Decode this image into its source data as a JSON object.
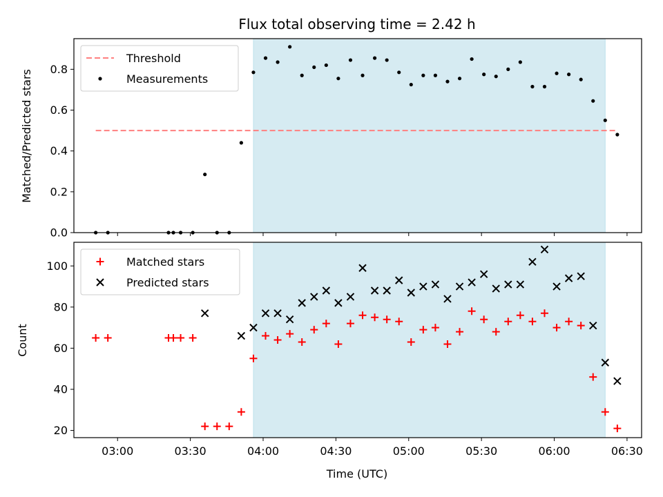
{
  "chart_data": [
    {
      "type": "scatter",
      "title": "Flux total observing time = 2.42 h",
      "xlabel": "",
      "ylabel": "Matched/Predicted stars",
      "xlim": [
        "02:42",
        "06:36"
      ],
      "ylim": [
        0,
        0.95
      ],
      "yticks": [
        0.0,
        0.2,
        0.4,
        0.6,
        0.8
      ],
      "ytick_labels": [
        "0.0",
        "0.2",
        "0.4",
        "0.6",
        "0.8"
      ],
      "highlight_span": {
        "start": "03:56",
        "end": "06:21",
        "color": "#add8e6"
      },
      "legend_position": "top-left",
      "legend": [
        "Threshold",
        "Measurements"
      ],
      "series": [
        {
          "name": "Threshold",
          "kind": "line",
          "style": "dashed",
          "color": "#ff7f7f",
          "x": [
            "02:51",
            "06:26"
          ],
          "y": [
            0.5,
            0.5
          ]
        },
        {
          "name": "Measurements",
          "kind": "scatter",
          "color": "#000000",
          "x": [
            "02:51",
            "02:56",
            "03:21",
            "03:23",
            "03:26",
            "03:31",
            "03:36",
            "03:41",
            "03:46",
            "03:51",
            "03:56",
            "04:01",
            "04:06",
            "04:11",
            "04:16",
            "04:21",
            "04:26",
            "04:31",
            "04:36",
            "04:41",
            "04:46",
            "04:51",
            "04:56",
            "05:01",
            "05:06",
            "05:11",
            "05:16",
            "05:21",
            "05:26",
            "05:31",
            "05:36",
            "05:41",
            "05:46",
            "05:51",
            "05:56",
            "06:01",
            "06:06",
            "06:11",
            "06:16",
            "06:21",
            "06:26"
          ],
          "y": [
            0.0,
            0.0,
            0.0,
            0.0,
            0.0,
            0.0,
            0.285,
            0.0,
            0.0,
            0.44,
            0.785,
            0.855,
            0.835,
            0.91,
            0.77,
            0.81,
            0.82,
            0.755,
            0.845,
            0.77,
            0.855,
            0.845,
            0.785,
            0.725,
            0.77,
            0.77,
            0.74,
            0.755,
            0.85,
            0.775,
            0.765,
            0.8,
            0.835,
            0.715,
            0.715,
            0.78,
            0.775,
            0.75,
            0.645,
            0.55,
            0.48
          ]
        }
      ]
    },
    {
      "type": "scatter",
      "title": "",
      "xlabel": "Time (UTC)",
      "ylabel": "Count",
      "xlim": [
        "02:42",
        "06:36"
      ],
      "ylim": [
        16.5,
        111.5
      ],
      "yticks": [
        20,
        40,
        60,
        80,
        100
      ],
      "ytick_labels": [
        "20",
        "40",
        "60",
        "80",
        "100"
      ],
      "xticks": [
        "03:00",
        "03:30",
        "04:00",
        "04:30",
        "05:00",
        "05:30",
        "06:00",
        "06:30"
      ],
      "highlight_span": {
        "start": "03:56",
        "end": "06:21",
        "color": "#add8e6"
      },
      "legend_position": "top-left",
      "legend": [
        "Matched stars",
        "Predicted stars"
      ],
      "series": [
        {
          "name": "Matched stars",
          "marker": "+",
          "color": "#ff0000",
          "x": [
            "02:51",
            "02:56",
            "03:21",
            "03:23",
            "03:26",
            "03:31",
            "03:36",
            "03:41",
            "03:46",
            "03:51",
            "03:56",
            "04:01",
            "04:06",
            "04:11",
            "04:16",
            "04:21",
            "04:26",
            "04:31",
            "04:36",
            "04:41",
            "04:46",
            "04:51",
            "04:56",
            "05:01",
            "05:06",
            "05:11",
            "05:16",
            "05:21",
            "05:26",
            "05:31",
            "05:36",
            "05:41",
            "05:46",
            "05:51",
            "05:56",
            "06:01",
            "06:06",
            "06:11",
            "06:16",
            "06:21",
            "06:26"
          ],
          "y": [
            65,
            65,
            65,
            65,
            65,
            65,
            22,
            22,
            22,
            29,
            55,
            66,
            64,
            67,
            63,
            69,
            72,
            62,
            72,
            76,
            75,
            74,
            73,
            63,
            69,
            70,
            62,
            68,
            78,
            74,
            68,
            73,
            76,
            73,
            77,
            70,
            73,
            71,
            46,
            29,
            21
          ]
        },
        {
          "name": "Predicted stars",
          "marker": "x",
          "color": "#000000",
          "x": [
            "03:36",
            "03:51",
            "03:56",
            "04:01",
            "04:06",
            "04:11",
            "04:16",
            "04:21",
            "04:26",
            "04:31",
            "04:36",
            "04:41",
            "04:46",
            "04:51",
            "04:56",
            "05:01",
            "05:06",
            "05:11",
            "05:16",
            "05:21",
            "05:26",
            "05:31",
            "05:36",
            "05:41",
            "05:46",
            "05:51",
            "05:56",
            "06:01",
            "06:06",
            "06:11",
            "06:16",
            "06:21",
            "06:26"
          ],
          "y": [
            77,
            66,
            70,
            77,
            77,
            74,
            82,
            85,
            88,
            82,
            85,
            99,
            88,
            88,
            93,
            87,
            90,
            91,
            84,
            90,
            92,
            96,
            89,
            91,
            91,
            102,
            108,
            90,
            94,
            95,
            71,
            53,
            44
          ]
        }
      ]
    }
  ]
}
